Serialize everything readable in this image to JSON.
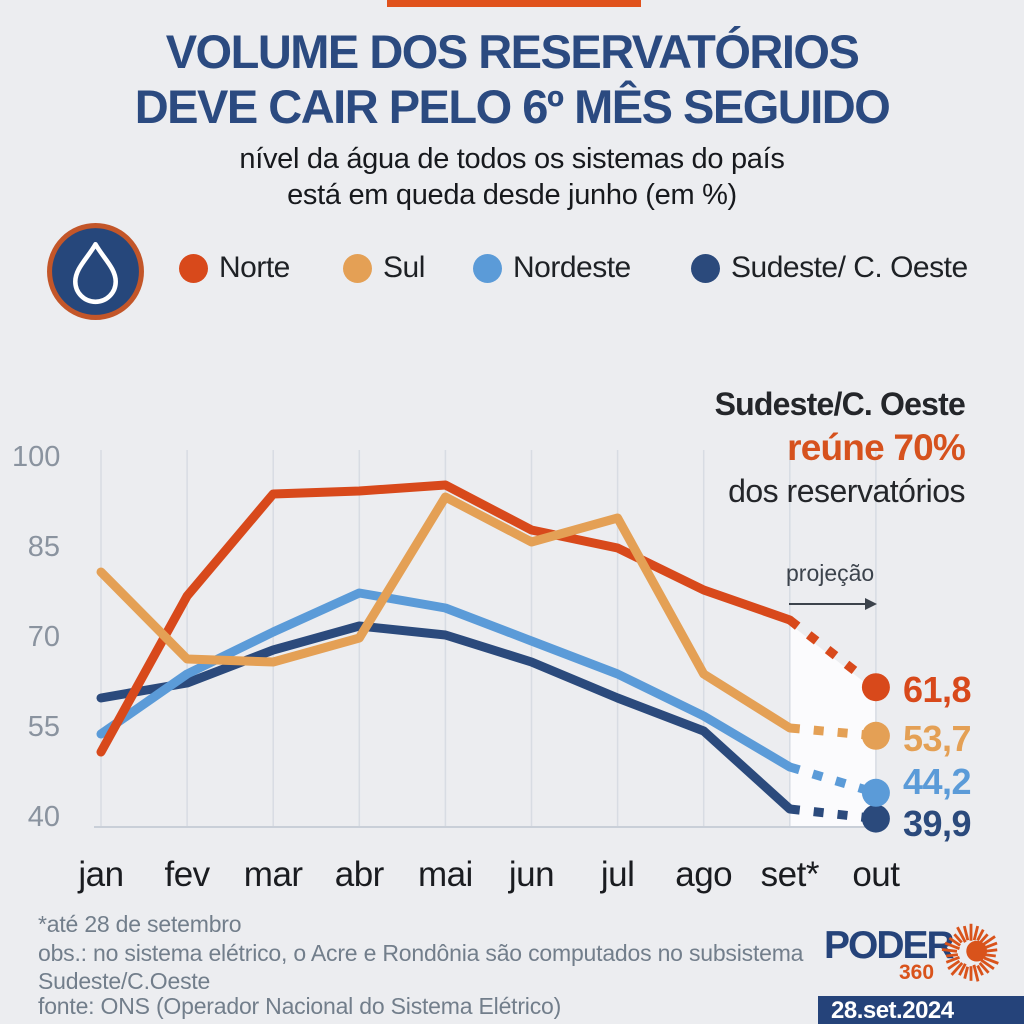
{
  "page": {
    "background": "#ECEDF0",
    "accent_bar_color": "#E0521C"
  },
  "header": {
    "title_line1": "VOLUME DOS RESERVATÓRIOS",
    "title_line2": "DEVE CAIR PELO 6º MÊS SEGUIDO",
    "subtitle_line1": "nível da água de todos os sistemas do país",
    "subtitle_line2": "está em queda desde junho (em %)"
  },
  "legend": {
    "items": [
      {
        "label": "Norte",
        "color": "#D8491B"
      },
      {
        "label": "Sul",
        "color": "#E4A055"
      },
      {
        "label": "Nordeste",
        "color": "#5B9BD8"
      },
      {
        "label": "Sudeste/ C. Oeste",
        "color": "#2B4A7C"
      }
    ]
  },
  "annotation": {
    "line1": "Sudeste/C. Oeste",
    "line2": "reúne 70%",
    "line3": "dos reservatórios",
    "highlight_color": "#D6521E"
  },
  "chart_data": {
    "type": "line",
    "title": "nível da água dos reservatórios por sistema (em %)",
    "categories": [
      "jan",
      "fev",
      "mar",
      "abr",
      "mai",
      "jun",
      "jul",
      "ago",
      "set*",
      "out"
    ],
    "y_ticks": [
      100,
      85,
      70,
      55,
      40
    ],
    "ylim": [
      38,
      102
    ],
    "unit": "%",
    "grid": "vertical",
    "legend_position": "top",
    "projection_start_index": 8,
    "projection_annotation": "projeção",
    "series": [
      {
        "name": "Norte",
        "color": "#D8491B",
        "values": [
          51,
          77,
          94,
          94.5,
          95.5,
          88,
          85,
          78,
          73
        ],
        "projection": 61.8,
        "end_label": "61,8"
      },
      {
        "name": "Sul",
        "color": "#E4A055",
        "values": [
          81,
          66.5,
          66,
          70,
          93.5,
          86,
          90,
          64,
          55
        ],
        "projection": 53.7,
        "end_label": "53,7"
      },
      {
        "name": "Nordeste",
        "color": "#5B9BD8",
        "values": [
          54,
          64,
          71,
          77.5,
          75,
          69.5,
          64,
          57,
          48.5
        ],
        "projection": 44.2,
        "end_label": "44,2"
      },
      {
        "name": "Sudeste/ C. Oeste",
        "color": "#2B4A7C",
        "values": [
          60,
          62.5,
          68,
          72,
          70.5,
          66,
          60,
          54.5,
          41.5
        ],
        "projection": 39.9,
        "end_label": "39,9"
      }
    ]
  },
  "footer": {
    "lines": [
      "*até 28 de setembro",
      "obs.: no sistema elétrico, o Acre e Rondônia são computados no subsistema",
      "Sudeste/C.Oeste",
      "fonte: ONS (Operador Nacional do Sistema Elétrico)"
    ]
  },
  "logo": {
    "name": "PODER",
    "sub": "360",
    "date": "28.set.2024"
  }
}
